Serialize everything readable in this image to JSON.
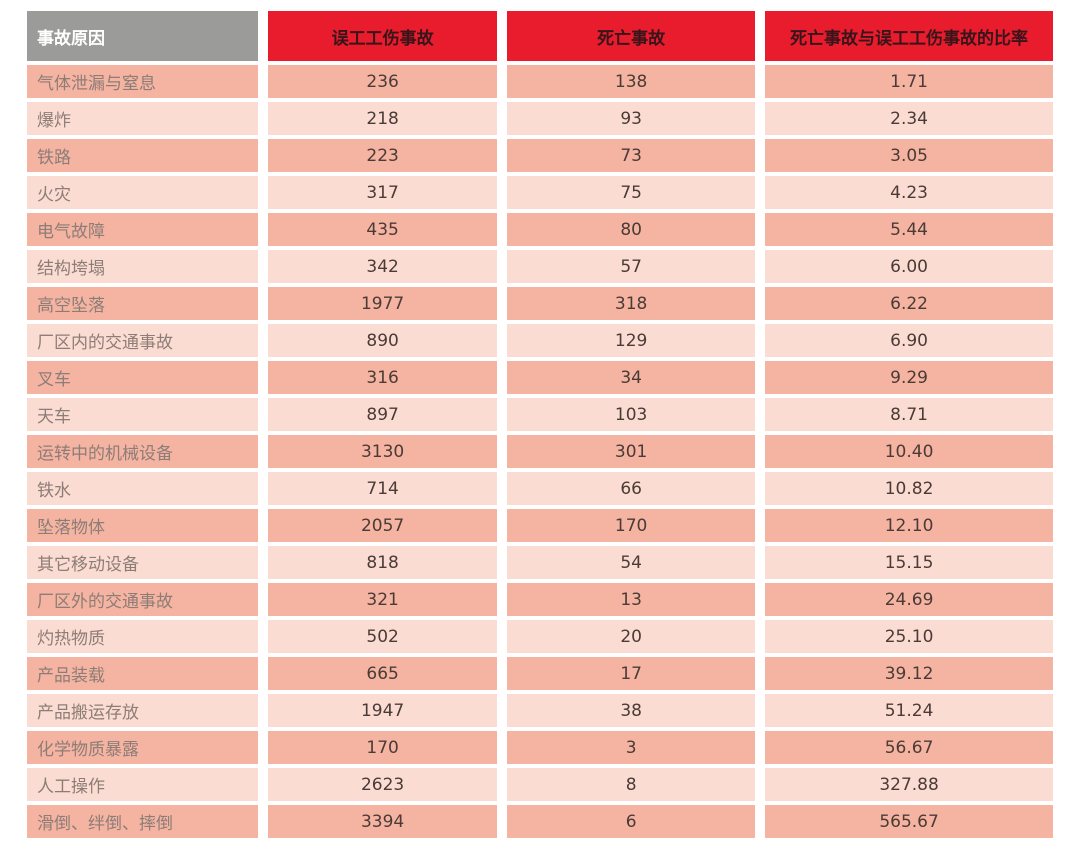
{
  "colors": {
    "header_red_bg": "#e81c2c",
    "header_gray_bg": "#9b9b99",
    "header_cause_text": "#ffffff",
    "header_metric_text": "#38151a",
    "row_dark_bg": "#f5b3a1",
    "row_light_bg": "#fbdcd2",
    "label_text": "#8d7d77",
    "number_text": "#4a3b37",
    "page_bg": "#ffffff"
  },
  "chart_data": {
    "type": "table",
    "columns": [
      "事故原因",
      "误工工伤事故",
      "死亡事故",
      "死亡事故与误工工伤事故的比率"
    ],
    "rows": [
      [
        "气体泄漏与窒息",
        "236",
        "138",
        "1.71"
      ],
      [
        "爆炸",
        "218",
        "93",
        "2.34"
      ],
      [
        "铁路",
        "223",
        "73",
        "3.05"
      ],
      [
        "火灾",
        "317",
        "75",
        "4.23"
      ],
      [
        "电气故障",
        "435",
        "80",
        "5.44"
      ],
      [
        "结构垮塌",
        "342",
        "57",
        "6.00"
      ],
      [
        "高空坠落",
        "1977",
        "318",
        "6.22"
      ],
      [
        "厂区内的交通事故",
        "890",
        "129",
        "6.90"
      ],
      [
        "叉车",
        "316",
        "34",
        "9.29"
      ],
      [
        "天车",
        "897",
        "103",
        "8.71"
      ],
      [
        "运转中的机械设备",
        "3130",
        "301",
        "10.40"
      ],
      [
        "铁水",
        "714",
        "66",
        "10.82"
      ],
      [
        "坠落物体",
        "2057",
        "170",
        "12.10"
      ],
      [
        "其它移动设备",
        "818",
        "54",
        "15.15"
      ],
      [
        "厂区外的交通事故",
        "321",
        "13",
        "24.69"
      ],
      [
        "灼热物质",
        "502",
        "20",
        "25.10"
      ],
      [
        "产品装载",
        "665",
        "17",
        "39.12"
      ],
      [
        "产品搬运存放",
        "1947",
        "38",
        "51.24"
      ],
      [
        "化学物质暴露",
        "170",
        "3",
        "56.67"
      ],
      [
        "人工操作",
        "2623",
        "8",
        "327.88"
      ],
      [
        "滑倒、绊倒、摔倒",
        "3394",
        "6",
        "565.67"
      ]
    ]
  }
}
